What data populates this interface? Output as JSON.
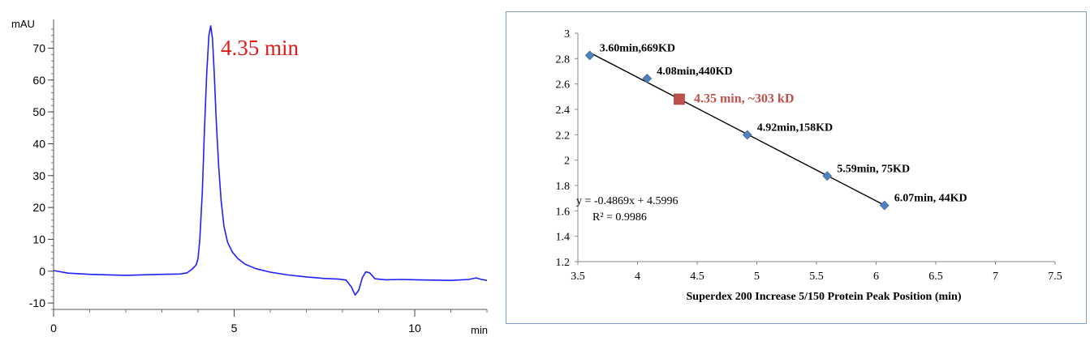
{
  "chart_data": [
    {
      "type": "line",
      "xlabel": "min",
      "ylabel": "mAU",
      "xlim": [
        0,
        12
      ],
      "ylim": [
        -12,
        78
      ],
      "x_ticks": [
        0,
        5,
        10
      ],
      "y_ticks": [
        -10,
        0,
        10,
        20,
        30,
        40,
        50,
        60,
        70
      ],
      "annotation": "4.35 min",
      "grid": false,
      "series": [
        {
          "color": "#1f1fff",
          "points": [
            [
              0.0,
              0.2
            ],
            [
              0.4,
              -0.6
            ],
            [
              1.0,
              -1.0
            ],
            [
              2.0,
              -1.3
            ],
            [
              3.0,
              -1.0
            ],
            [
              3.5,
              -0.9
            ],
            [
              3.7,
              -0.5
            ],
            [
              3.85,
              0.8
            ],
            [
              3.95,
              2.0
            ],
            [
              4.0,
              4.0
            ],
            [
              4.05,
              10.0
            ],
            [
              4.12,
              25.0
            ],
            [
              4.18,
              45.0
            ],
            [
              4.24,
              62.0
            ],
            [
              4.3,
              74.0
            ],
            [
              4.35,
              77.0
            ],
            [
              4.4,
              73.0
            ],
            [
              4.45,
              62.0
            ],
            [
              4.5,
              48.0
            ],
            [
              4.57,
              33.0
            ],
            [
              4.64,
              22.0
            ],
            [
              4.72,
              14.0
            ],
            [
              4.82,
              9.0
            ],
            [
              4.95,
              6.0
            ],
            [
              5.1,
              4.0
            ],
            [
              5.3,
              2.2
            ],
            [
              5.6,
              0.8
            ],
            [
              6.0,
              -0.3
            ],
            [
              6.5,
              -1.2
            ],
            [
              7.0,
              -1.8
            ],
            [
              7.5,
              -2.3
            ],
            [
              7.9,
              -2.5
            ],
            [
              8.1,
              -2.8
            ],
            [
              8.25,
              -5.0
            ],
            [
              8.35,
              -7.5
            ],
            [
              8.45,
              -6.0
            ],
            [
              8.55,
              -2.0
            ],
            [
              8.65,
              -0.2
            ],
            [
              8.75,
              -0.5
            ],
            [
              8.9,
              -2.4
            ],
            [
              9.2,
              -2.7
            ],
            [
              9.6,
              -2.6
            ],
            [
              10.0,
              -2.7
            ],
            [
              10.5,
              -2.8
            ],
            [
              11.0,
              -2.9
            ],
            [
              11.5,
              -2.6
            ],
            [
              11.7,
              -2.1
            ],
            [
              11.85,
              -2.6
            ],
            [
              12.0,
              -2.9
            ]
          ]
        }
      ]
    },
    {
      "type": "scatter",
      "xlabel": "Superdex 200 Increase 5/150  Protein Peak Position (min)",
      "ylabel": "",
      "xlim": [
        3.5,
        7.5
      ],
      "ylim": [
        1.2,
        3.0
      ],
      "x_ticks": [
        "3.5",
        "4",
        "4.5",
        "5",
        "5.5",
        "6",
        "6.5",
        "7",
        "7.5"
      ],
      "y_ticks": [
        "1.2",
        "1.4",
        "1.6",
        "1.8",
        "2",
        "2.2",
        "2.4",
        "2.6",
        "2.8",
        "3"
      ],
      "grid": false,
      "equation": "y = -0.4869x + 4.5996",
      "r_squared": "R² = 0.9986",
      "trendline": {
        "slope": -0.4869,
        "intercept": 4.5996,
        "x_range": [
          3.6,
          6.07
        ]
      },
      "series": [
        {
          "marker": "diamond",
          "color": "#4f81bd",
          "points": [
            {
              "x": 3.6,
              "y": 2.825,
              "label": "3.60min,669KD"
            },
            {
              "x": 4.08,
              "y": 2.643,
              "label": "4.08min,440KD"
            },
            {
              "x": 4.92,
              "y": 2.199,
              "label": "4.92min,158KD"
            },
            {
              "x": 5.59,
              "y": 1.875,
              "label": "5.59min, 75KD"
            },
            {
              "x": 6.07,
              "y": 1.643,
              "label": "6.07min, 44KD"
            }
          ]
        },
        {
          "marker": "square",
          "color": "#c0504d",
          "points": [
            {
              "x": 4.35,
              "y": 2.48,
              "label": "4.35 min, ~303 kD"
            }
          ]
        }
      ]
    }
  ]
}
